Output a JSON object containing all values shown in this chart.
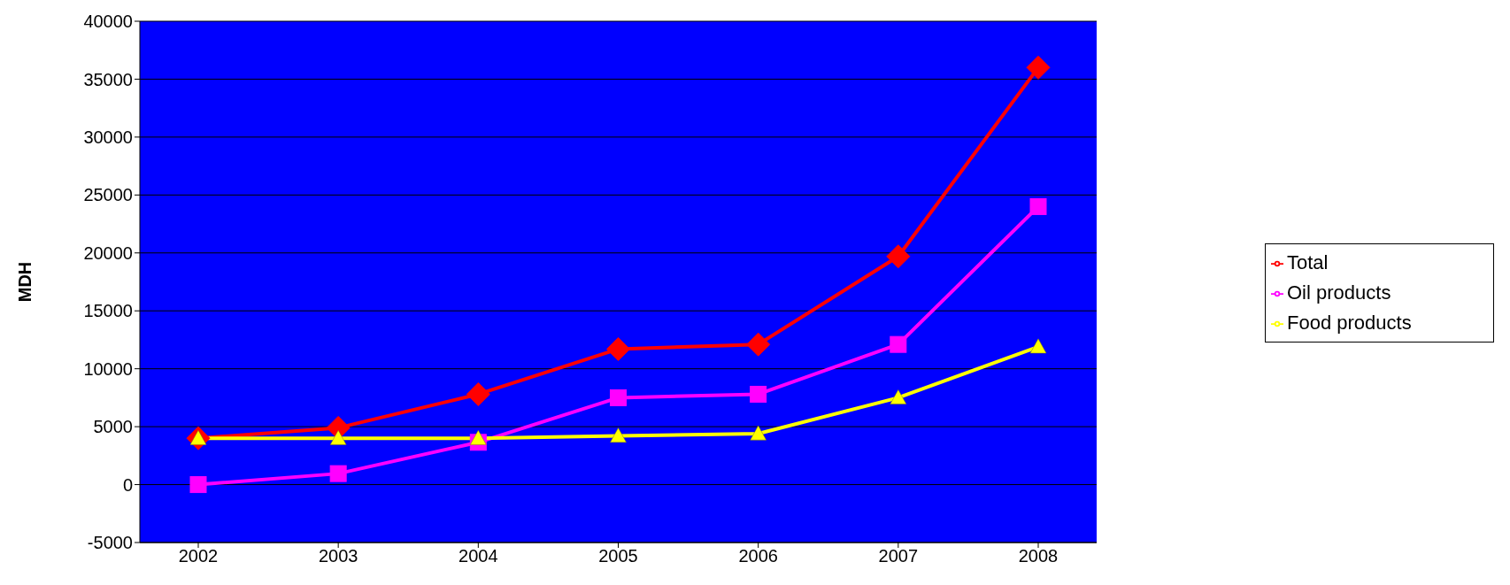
{
  "chart_data": {
    "type": "line",
    "ylabel": "MDH",
    "categories": [
      "2002",
      "2003",
      "2004",
      "2005",
      "2006",
      "2007",
      "2008"
    ],
    "series": [
      {
        "name": "Total",
        "color": "#ff0000",
        "marker": "diamond",
        "values": [
          4000,
          4900,
          7800,
          11700,
          12100,
          19700,
          36000
        ]
      },
      {
        "name": "Oil products",
        "color": "#ff00ff",
        "marker": "square",
        "values": [
          0,
          950,
          3650,
          7500,
          7800,
          12100,
          24000
        ]
      },
      {
        "name": "Food products",
        "color": "#ffff00",
        "marker": "triangle",
        "values": [
          4000,
          4000,
          4000,
          4200,
          4400,
          7500,
          11900
        ]
      }
    ],
    "ylim": [
      -5000,
      40000
    ],
    "yticks": [
      -5000,
      0,
      5000,
      10000,
      15000,
      20000,
      25000,
      30000,
      35000,
      40000
    ],
    "grid": "y",
    "legend": "right"
  }
}
